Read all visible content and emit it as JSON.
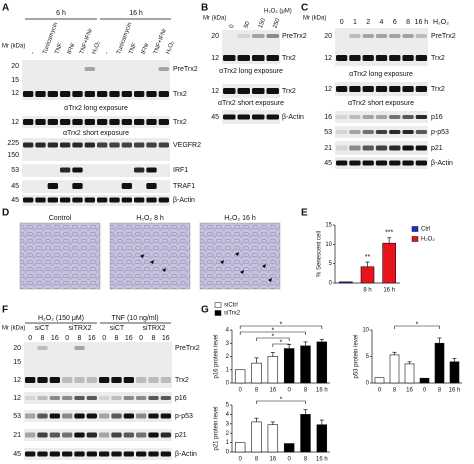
{
  "panel_labels": [
    "A",
    "B",
    "C",
    "D",
    "E",
    "F",
    "G"
  ],
  "A": {
    "times": [
      "6 h",
      "16 h"
    ],
    "lanes": [
      "-",
      "Tunicamycin",
      "TNF",
      "IFNr",
      "TNF+IFNr",
      "H₂O₂",
      "-",
      "Tunicamycin",
      "TNF",
      "IFNr",
      "TNF+IFNr",
      "H₂O₂"
    ],
    "mr": "Mr (kDa)",
    "mw": [
      "20",
      "15",
      "12",
      "12",
      "225",
      "150",
      "53",
      "45",
      "45"
    ],
    "proteins": [
      "PreTrx2",
      "Trx2",
      "Trx2",
      "VEGFR2",
      "IRF1",
      "TRAF1",
      "β-Actin"
    ],
    "notes": [
      "αTrx2 long exposure",
      "αTrx2 short exposure"
    ]
  },
  "B": {
    "mr": "Mr (kDa)",
    "lanes": [
      "0",
      "50",
      "150",
      "250"
    ],
    "unit": "H₂O₂ (μM)",
    "mw": [
      "20",
      "12",
      "12",
      "45"
    ],
    "proteins": [
      "PreTrx2",
      "Trx2",
      "Trx2",
      "β-Actin"
    ],
    "notes": [
      "αTrx2 long exposure",
      "αTrx2 short exposure"
    ]
  },
  "C": {
    "mr": "Mr (kDa)",
    "lanes": [
      "0",
      "1",
      "2",
      "4",
      "6",
      "8",
      "16 h"
    ],
    "unit": "H₂O₂",
    "mw": [
      "20",
      "12",
      "12",
      "16",
      "53",
      "21",
      "45"
    ],
    "proteins": [
      "PreTrx2",
      "Trx2",
      "Trx2",
      "p16",
      "p-p53",
      "p21",
      "β-Actin"
    ],
    "notes": [
      "αTrx2 long exposure",
      "αTrx2 short exposure"
    ]
  },
  "D": {
    "titles": [
      "Control",
      "H₂O₂ 8 h",
      "H₂O₂ 16 h"
    ]
  },
  "F": {
    "mr": "Mr (kDa)",
    "treatments": [
      "H₂O₂ (150 μM)",
      "TNF (10 ng/ml)"
    ],
    "sirna": [
      "siCT",
      "siTRX2",
      "siCT",
      "siTRX2"
    ],
    "lanes": [
      "0",
      "8",
      "16",
      "0",
      "8",
      "16",
      "0",
      "8",
      "16",
      "0",
      "8",
      "16"
    ],
    "mw": [
      "20",
      "15",
      "12",
      "12",
      "53",
      "21",
      "45"
    ],
    "proteins": [
      "PreTrx2",
      "Trx2",
      "p16",
      "p-p53",
      "p21",
      "β-Actin"
    ]
  },
  "chart_data": [
    {
      "type": "bar",
      "ylabel": "% Senescent cell",
      "categories": [
        null,
        "8 h",
        "16 h"
      ],
      "series": [
        {
          "name": "Ctrl",
          "color": "#1f2bd6",
          "values": [
            0.3,
            null,
            null
          ]
        },
        {
          "name": "H₂O₂",
          "color": "#e8141c",
          "values": [
            null,
            4.2,
            10.3
          ],
          "errors": [
            null,
            1.2,
            1.4
          ]
        }
      ],
      "ylim": [
        0,
        15
      ],
      "yticks": [
        0,
        5,
        10,
        15
      ],
      "annotations": [
        "**",
        "***"
      ],
      "legend": "right"
    },
    {
      "type": "bar",
      "ylabel": "p16 protein level",
      "categories": [
        "0",
        "8",
        "16",
        "0",
        "8",
        "16 h"
      ],
      "series": [
        {
          "name": "siCtrl",
          "color": "#ffffff",
          "values": [
            1,
            1.5,
            2,
            null,
            null,
            null
          ],
          "errors": [
            null,
            0.4,
            0.3,
            null,
            null,
            null
          ]
        },
        {
          "name": "siTrx2",
          "color": "#000000",
          "values": [
            null,
            null,
            null,
            2.6,
            2.8,
            3.1
          ],
          "errors": [
            null,
            null,
            null,
            0.3,
            0.3,
            0.2
          ]
        }
      ],
      "ylim": [
        0,
        4
      ],
      "yticks": [
        0,
        1,
        2,
        3,
        4
      ],
      "annotations": [
        "*",
        "*",
        "*",
        "*"
      ],
      "legend": "upper left"
    },
    {
      "type": "bar",
      "ylabel": "p53 protein level",
      "categories": [
        "0",
        "8",
        "16",
        "0",
        "8",
        "16 h"
      ],
      "series": [
        {
          "color": "#ffffff",
          "values": [
            1,
            5.3,
            3.6,
            null,
            null,
            null
          ],
          "errors": [
            null,
            0.5,
            0.4,
            null,
            null,
            null
          ]
        },
        {
          "color": "#000000",
          "values": [
            null,
            null,
            null,
            0.9,
            7.5,
            4
          ],
          "errors": [
            null,
            null,
            null,
            null,
            1,
            0.6
          ]
        }
      ],
      "ylim": [
        0,
        10
      ],
      "yticks": [
        0,
        5,
        10
      ],
      "annotations": [
        "*"
      ]
    },
    {
      "type": "bar",
      "ylabel": "p21 protein level",
      "categories": [
        "0",
        "8",
        "16",
        "0",
        "8",
        "16 h"
      ],
      "series": [
        {
          "color": "#ffffff",
          "values": [
            1,
            3.2,
            2.9,
            null,
            null,
            null
          ],
          "errors": [
            null,
            0.4,
            0.3,
            null,
            null,
            null
          ]
        },
        {
          "color": "#000000",
          "values": [
            null,
            null,
            null,
            0.9,
            4,
            2.9
          ],
          "errors": [
            null,
            null,
            null,
            null,
            0.5,
            0.5
          ]
        }
      ],
      "ylim": [
        0,
        5
      ],
      "yticks": [
        0,
        1,
        2,
        3,
        4,
        5
      ],
      "annotations": [
        "*"
      ]
    }
  ]
}
